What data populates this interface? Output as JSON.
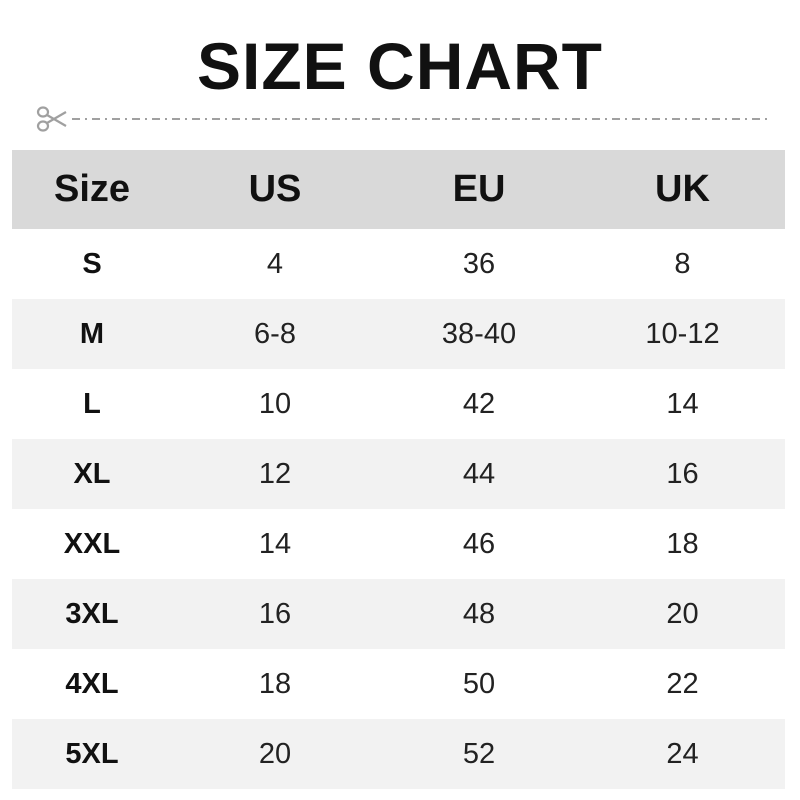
{
  "title": "SIZE CHART",
  "icons": {
    "cut_line": "scissors-icon"
  },
  "colors": {
    "header_bg": "#d9d9d9",
    "alt_row_bg": "#f2f2f2",
    "cut_line": "#a0a0a0"
  },
  "table": {
    "headers": [
      "Size",
      "US",
      "EU",
      "UK"
    ],
    "rows": [
      [
        "S",
        "4",
        "36",
        "8"
      ],
      [
        "M",
        "6-8",
        "38-40",
        "10-12"
      ],
      [
        "L",
        "10",
        "42",
        "14"
      ],
      [
        "XL",
        "12",
        "44",
        "16"
      ],
      [
        "XXL",
        "14",
        "46",
        "18"
      ],
      [
        "3XL",
        "16",
        "48",
        "20"
      ],
      [
        "4XL",
        "18",
        "50",
        "22"
      ],
      [
        "5XL",
        "20",
        "52",
        "24"
      ]
    ]
  }
}
